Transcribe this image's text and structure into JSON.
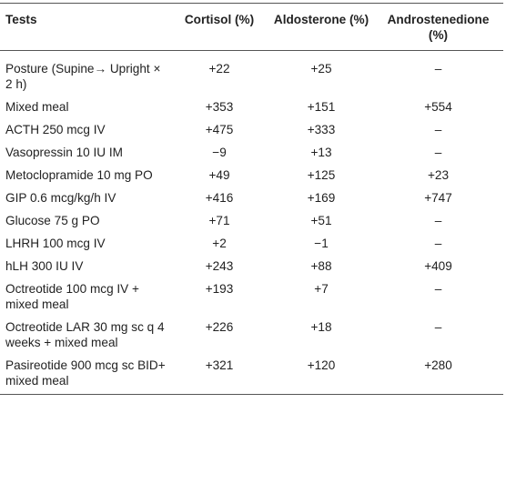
{
  "table": {
    "headers": {
      "tests": "Tests",
      "cortisol": "Cortisol (%)",
      "aldosterone": "Aldosterone (%)",
      "androstenedione": "Androstenedione (%)"
    },
    "rows": [
      {
        "test": "Posture (Supine→ Upright × 2 h)",
        "cortisol": "+22",
        "aldosterone": "+25",
        "androstenedione": "–"
      },
      {
        "test": "Mixed meal",
        "cortisol": "+353",
        "aldosterone": "+151",
        "androstenedione": "+554"
      },
      {
        "test": "ACTH 250 mcg IV",
        "cortisol": "+475",
        "aldosterone": "+333",
        "androstenedione": "–"
      },
      {
        "test": "Vasopressin 10 IU IM",
        "cortisol": "−9",
        "aldosterone": "+13",
        "androstenedione": "–"
      },
      {
        "test": "Metoclopramide 10 mg PO",
        "cortisol": "+49",
        "aldosterone": "+125",
        "androstenedione": "+23"
      },
      {
        "test": "GIP 0.6 mcg/kg/h IV",
        "cortisol": "+416",
        "aldosterone": "+169",
        "androstenedione": "+747"
      },
      {
        "test": "Glucose 75 g PO",
        "cortisol": "+71",
        "aldosterone": "+51",
        "androstenedione": "–"
      },
      {
        "test": "LHRH 100 mcg IV",
        "cortisol": "+2",
        "aldosterone": "−1",
        "androstenedione": "–"
      },
      {
        "test": "hLH 300 IU IV",
        "cortisol": "+243",
        "aldosterone": "+88",
        "androstenedione": "+409"
      },
      {
        "test": "Octreotide 100 mcg IV + mixed meal",
        "cortisol": "+193",
        "aldosterone": "+7",
        "androstenedione": "–"
      },
      {
        "test": "Octreotide LAR 30 mg sc q 4 weeks + mixed meal",
        "cortisol": "+226",
        "aldosterone": "+18",
        "androstenedione": "–"
      },
      {
        "test": "Pasireotide 900 mcg sc BID+ mixed meal",
        "cortisol": "+321",
        "aldosterone": "+120",
        "androstenedione": "+280"
      }
    ]
  }
}
